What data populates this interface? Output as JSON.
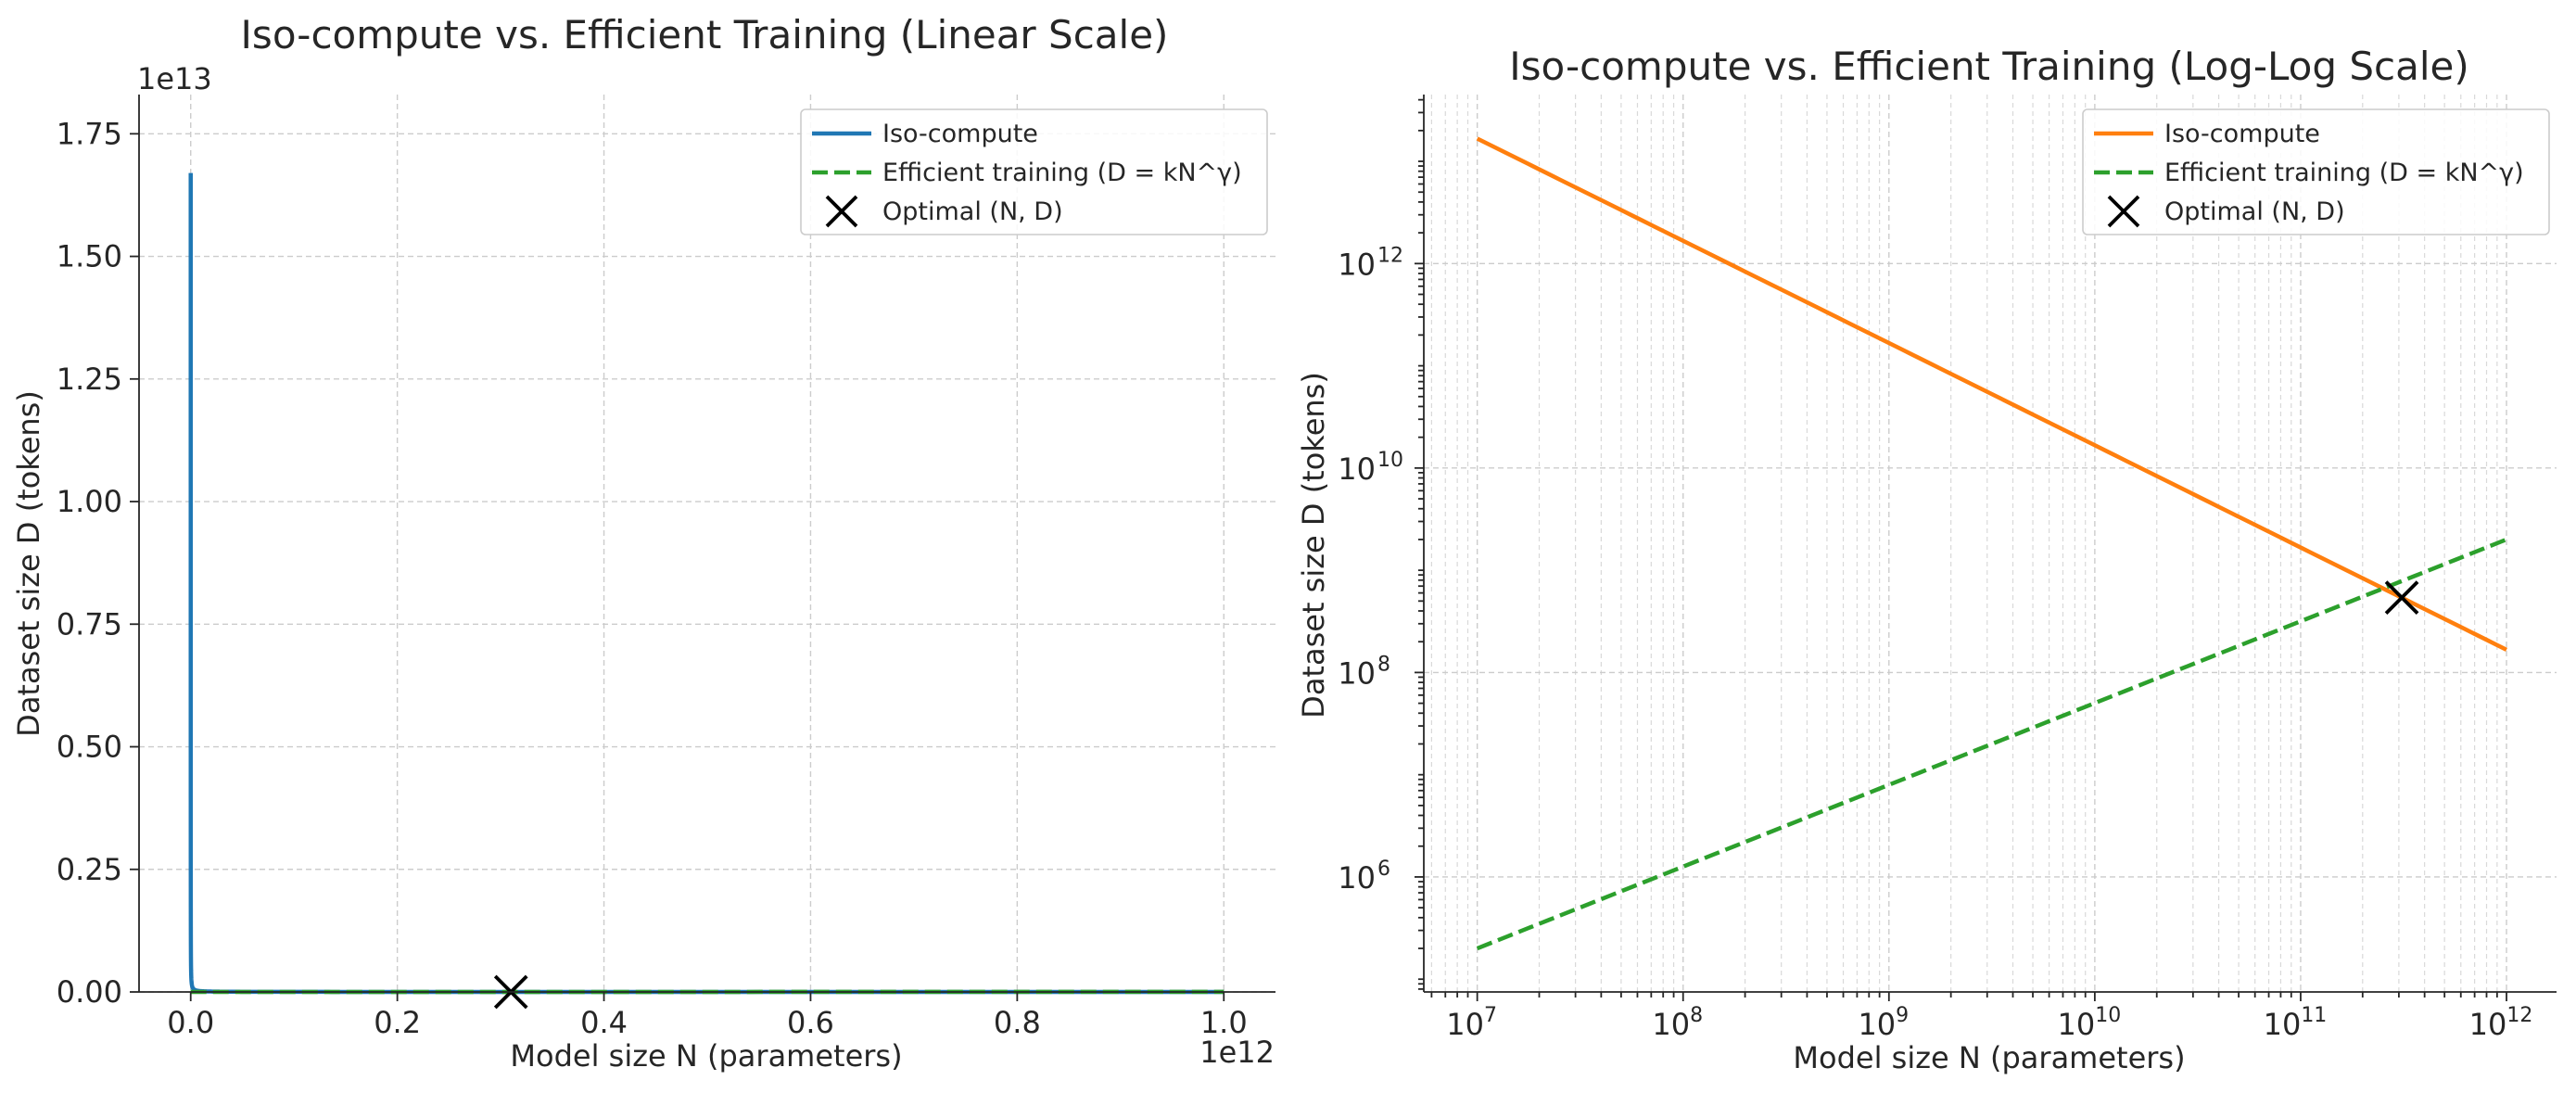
{
  "chart_data": [
    {
      "type": "line",
      "title": "Iso-compute vs. Efficient Training (Linear Scale)",
      "xlabel": "Model size N (parameters)",
      "ylabel": "Dataset size D (tokens)",
      "x_offset_label": "1e12",
      "y_offset_label": "1e13",
      "xscale": "linear",
      "yscale": "linear",
      "xlim": [
        -50000000000.0,
        1050000000000.0
      ],
      "ylim": [
        0,
        18300000000000.0
      ],
      "xticks": [
        0,
        200000000000.0,
        400000000000.0,
        600000000000.0,
        800000000000.0,
        1000000000000.0
      ],
      "xtick_labels": [
        "0.0",
        "0.2",
        "0.4",
        "0.6",
        "0.8",
        "1.0"
      ],
      "yticks": [
        0,
        2500000000000.0,
        5000000000000.0,
        7500000000000.0,
        10000000000000.0,
        12500000000000.0,
        15000000000000.0,
        17500000000000.0
      ],
      "ytick_labels": [
        "0.00",
        "0.25",
        "0.50",
        "0.75",
        "1.00",
        "1.25",
        "1.50",
        "1.75"
      ],
      "grid": true,
      "legend_position": "top-right",
      "series": [
        {
          "name": "Iso-compute",
          "style": "solid",
          "color": "#1f77b4",
          "x_range": [
            10000000.0,
            1000000000000.0
          ],
          "formula": "D = 1.67e20 / N"
        },
        {
          "name": "Efficient training (D = kN^γ)",
          "style": "dashed",
          "color": "#2ca02c",
          "x_range": [
            10000000.0,
            1000000000000.0
          ],
          "formula": "D = 2e5 * (N / 1e7)^0.8"
        }
      ],
      "markers": [
        {
          "name": "Optimal (N, D)",
          "symbol": "x",
          "color": "#000000",
          "x": 310000000000.0,
          "y": 540000000.0
        }
      ]
    },
    {
      "type": "line",
      "title": "Iso-compute vs. Efficient Training (Log-Log Scale)",
      "xlabel": "Model size N (parameters)",
      "ylabel": "Dataset size D (tokens)",
      "xscale": "log",
      "yscale": "log",
      "xlim": [
        5500000.0,
        1750000000000.0
      ],
      "ylim": [
        75000.0,
        45000000000000.0
      ],
      "xtick_exponents": [
        7,
        8,
        9,
        10,
        11,
        12
      ],
      "ytick_exponents": [
        6,
        8,
        10,
        12
      ],
      "tick_base": "10",
      "grid": true,
      "legend_position": "top-right",
      "series": [
        {
          "name": "Iso-compute",
          "style": "solid",
          "color": "#ff7f0e",
          "x_range": [
            10000000.0,
            1000000000000.0
          ],
          "formula": "D = 1.67e20 / N"
        },
        {
          "name": "Efficient training (D = kN^γ)",
          "style": "dashed",
          "color": "#2ca02c",
          "x_range": [
            10000000.0,
            1000000000000.0
          ],
          "formula": "D = 2e5 * (N / 1e7)^0.8"
        }
      ],
      "markers": [
        {
          "name": "Optimal (N, D)",
          "symbol": "x",
          "color": "#000000",
          "x": 310000000000.0,
          "y": 540000000.0
        }
      ]
    }
  ]
}
